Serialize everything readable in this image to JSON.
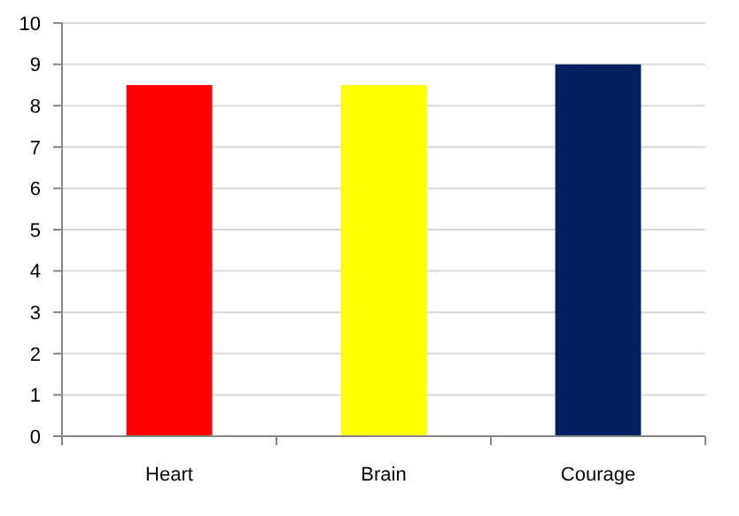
{
  "chart_data": {
    "type": "bar",
    "categories": [
      "Heart",
      "Brain",
      "Courage"
    ],
    "values": [
      8.5,
      8.5,
      9
    ],
    "colors": [
      "#ff0000",
      "#ffff00",
      "#002060"
    ],
    "ylim": [
      0,
      10
    ],
    "yticks": [
      0,
      1,
      2,
      3,
      4,
      5,
      6,
      7,
      8,
      9,
      10
    ],
    "grid": "y"
  }
}
